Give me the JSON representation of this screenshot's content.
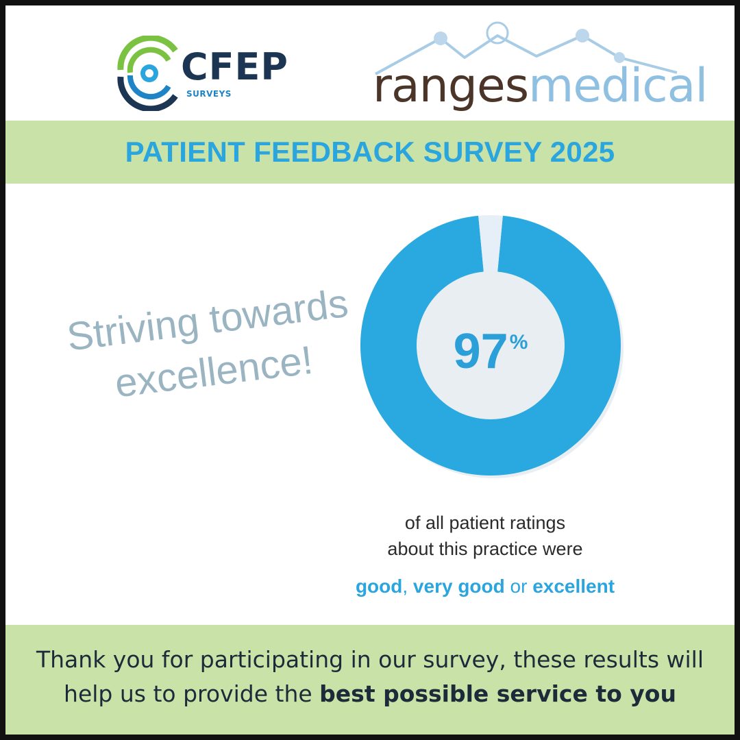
{
  "logos": {
    "cfep": {
      "word": "CFEP",
      "sub": "SURVEYS",
      "icon": "cfep-radar-icon",
      "colors": {
        "navy": "#1b3553",
        "blue": "#1f84c6",
        "green": "#7cc242"
      }
    },
    "ranges": {
      "word_dark": "ranges",
      "word_light": "medical",
      "icon": "mountain-range-icon",
      "colors": {
        "dark": "#4a3528",
        "light": "#8fc0e2"
      }
    }
  },
  "title": "PATIENT FEEDBACK SURVEY 2025",
  "tagline": {
    "line1": "Striving towards",
    "line2": "excellence!"
  },
  "chart_data": {
    "type": "pie",
    "style": "donut",
    "values": [
      97,
      3
    ],
    "colors": [
      "#2aa9e0",
      "#e6eef7"
    ],
    "center_label": {
      "number": "97",
      "unit": "%"
    }
  },
  "caption": {
    "line1": "of all patient ratings",
    "line2": "about this practice were",
    "rating": {
      "r1": "good",
      "sep1": ",",
      "r2": "very good",
      "sep2": "or",
      "r3": "excellent"
    }
  },
  "footer": {
    "text_regular": "Thank you for participating in our survey, these results will help us to provide the",
    "text_bold": "best possible service to you"
  },
  "colors": {
    "band": "#c8e2a7",
    "title": "#2aa5dd",
    "tagline": "#9ab4c2",
    "frame": "#111111"
  }
}
